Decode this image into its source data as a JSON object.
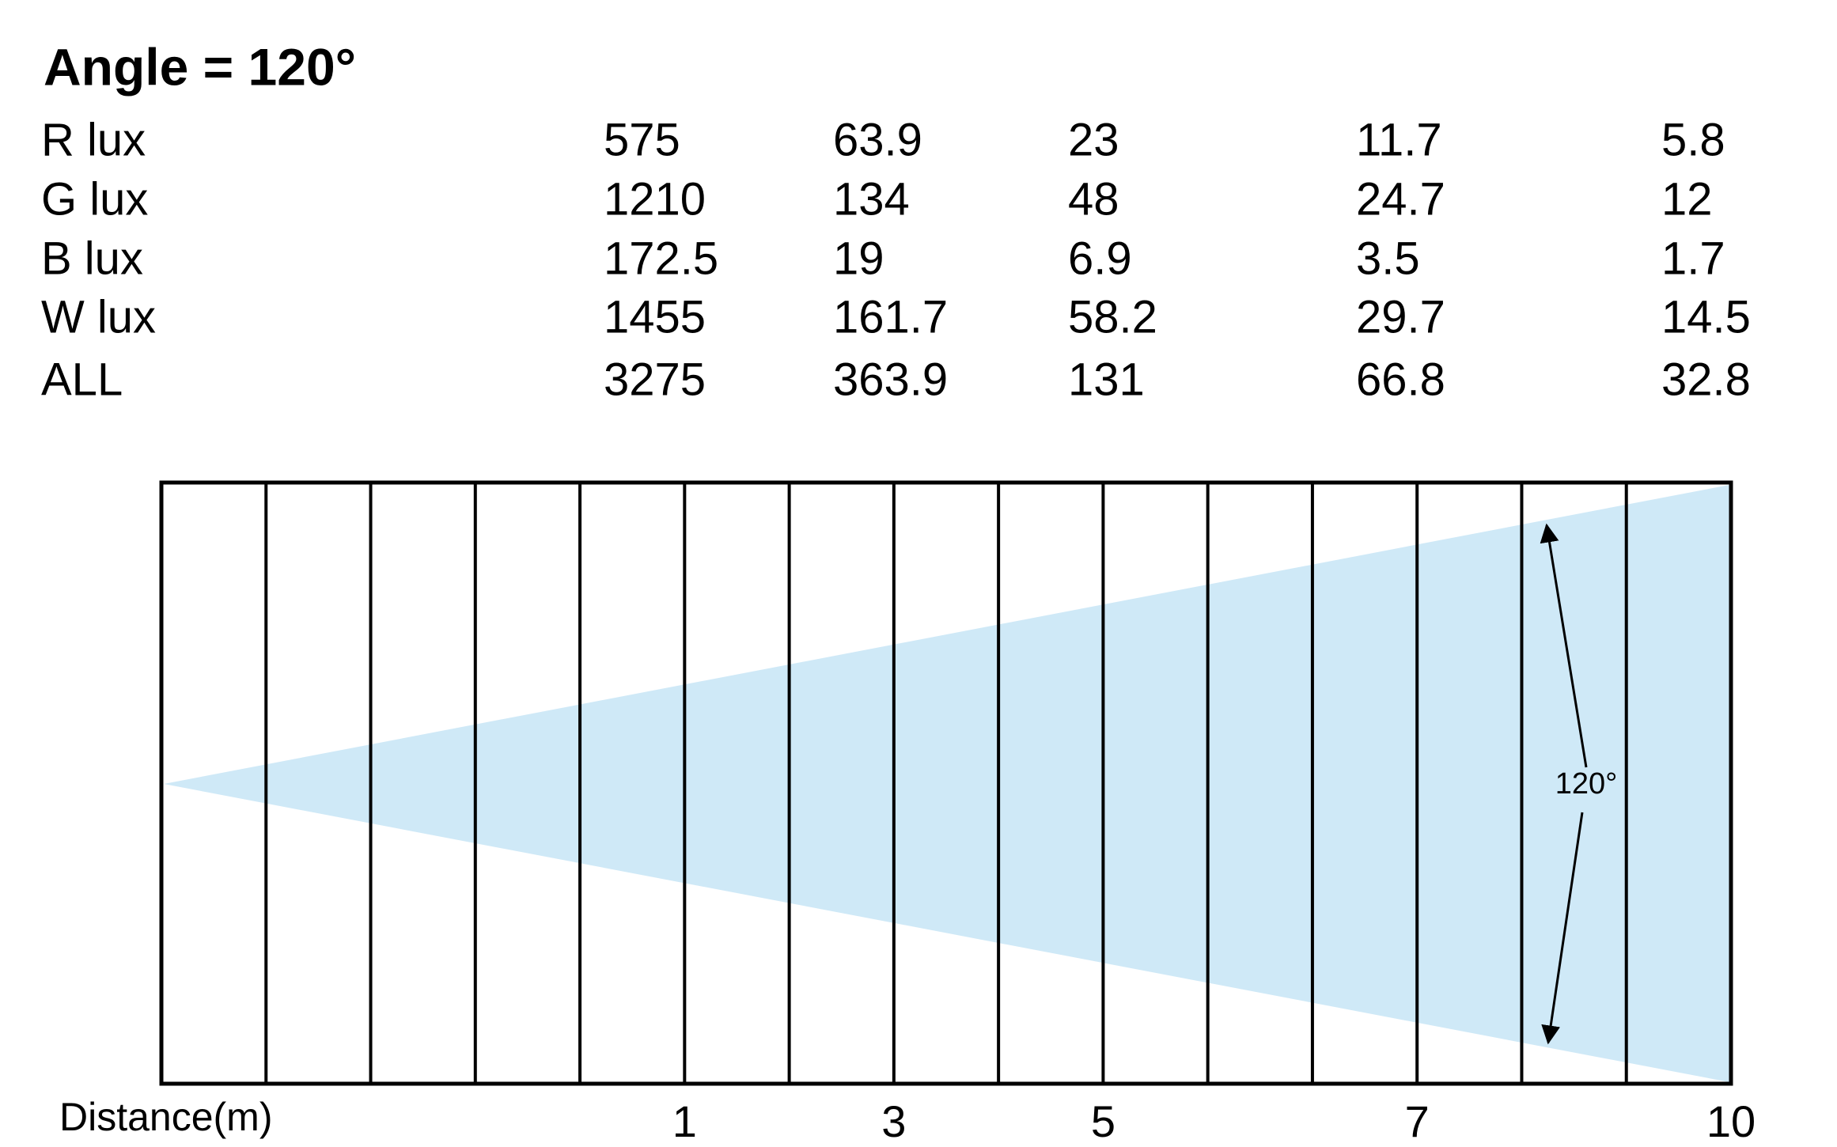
{
  "title": "Angle = 120°",
  "table": {
    "rows": [
      [
        "R lux",
        575,
        63.9,
        23,
        11.7,
        5.8
      ],
      [
        "G lux",
        1210,
        134,
        48,
        24.7,
        12
      ],
      [
        "B lux",
        172.5,
        19,
        6.9,
        3.5,
        1.7
      ],
      [
        "W lux",
        1455,
        161.7,
        58.2,
        29.7,
        14.5
      ],
      [
        "ALL",
        3275,
        363.9,
        131,
        66.8,
        32.8
      ]
    ]
  },
  "diagram": {
    "angle_label": "120°",
    "distance_label": "Distance(m)",
    "distance_ticks": [
      1,
      3,
      5,
      7,
      10
    ]
  }
}
